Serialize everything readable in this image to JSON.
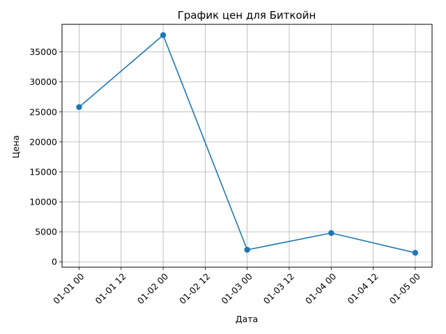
{
  "chart_data": {
    "type": "line",
    "title": "График цен для Биткойн",
    "xlabel": "Дата",
    "ylabel": "Цена",
    "grid": true,
    "x_tick_labels": [
      "01-01 00",
      "01-01 12",
      "01-02 00",
      "01-02 12",
      "01-03 00",
      "01-03 12",
      "01-04 00",
      "01-04 12",
      "01-05 00"
    ],
    "y_tick_labels": [
      "0",
      "5000",
      "10000",
      "15000",
      "20000",
      "25000",
      "30000",
      "35000"
    ],
    "y_ticks": [
      0,
      5000,
      10000,
      15000,
      20000,
      25000,
      30000,
      35000
    ],
    "ylim": [
      -900,
      39600
    ],
    "xlim": [
      "01-01 00",
      "01-05 00"
    ],
    "series": [
      {
        "color": "#1f77b4",
        "marker": "circle",
        "x": [
          "01-01 00",
          "01-02 00",
          "01-03 00",
          "01-04 00",
          "01-05 00"
        ],
        "values": [
          25800,
          37800,
          2000,
          4800,
          1500
        ]
      }
    ]
  }
}
